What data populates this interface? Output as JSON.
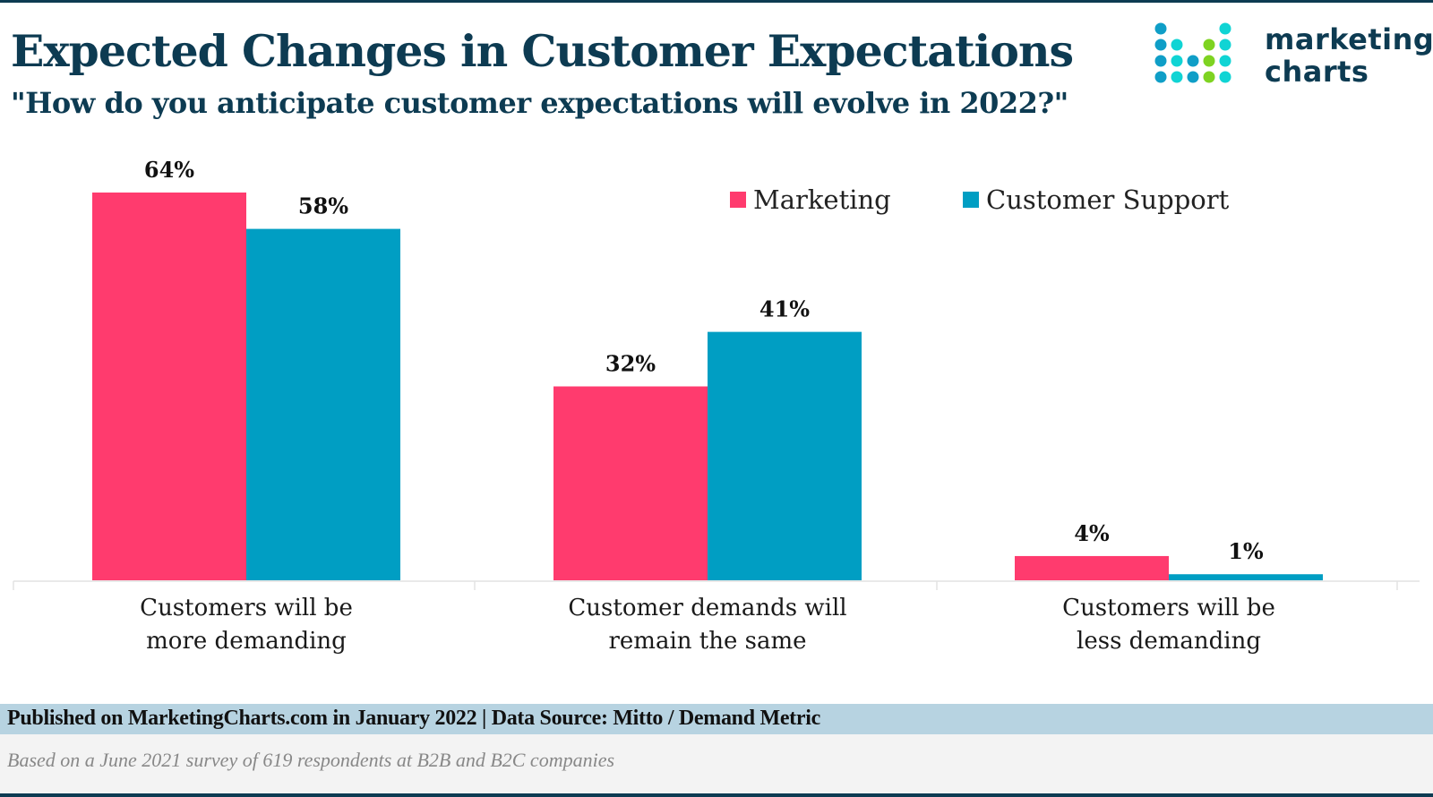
{
  "header": {
    "title": "Expected Changes in Customer Expectations",
    "subtitle": "\"How do you anticipate customer expectations will evolve in 2022?\""
  },
  "logo": {
    "line1": "marketing",
    "line2": "charts",
    "icon": "dot-grid-logo-icon",
    "colors": {
      "blue": "#0f9ec7",
      "teal": "#10d4d4",
      "green": "#7ed321",
      "text": "#0d3b52"
    }
  },
  "legend": {
    "items": [
      {
        "label": "Marketing",
        "color": "#ff3b6e"
      },
      {
        "label": "Customer Support",
        "color": "#009ec3"
      }
    ]
  },
  "chart_data": {
    "type": "bar",
    "title": "Expected Changes in Customer Expectations",
    "subtitle": "\"How do you anticipate customer expectations will evolve in 2022?\"",
    "xlabel": "",
    "ylabel": "",
    "ylim": [
      0,
      64
    ],
    "grid": false,
    "legend_position": "top-right",
    "value_suffix": "%",
    "categories": [
      [
        "Customers will be",
        "more demanding"
      ],
      [
        "Customer demands will",
        "remain the same"
      ],
      [
        "Customers will be",
        "less demanding"
      ]
    ],
    "series": [
      {
        "name": "Marketing",
        "color": "#ff3b6e",
        "values": [
          64,
          32,
          4
        ]
      },
      {
        "name": "Customer Support",
        "color": "#009ec3",
        "values": [
          58,
          41,
          1
        ]
      }
    ]
  },
  "footer": {
    "source": "Published on MarketingCharts.com in January 2022 | Data Source: Mitto / Demand Metric",
    "note": "Based on a June 2021 survey of 619 respondents at B2B and B2C companies"
  }
}
